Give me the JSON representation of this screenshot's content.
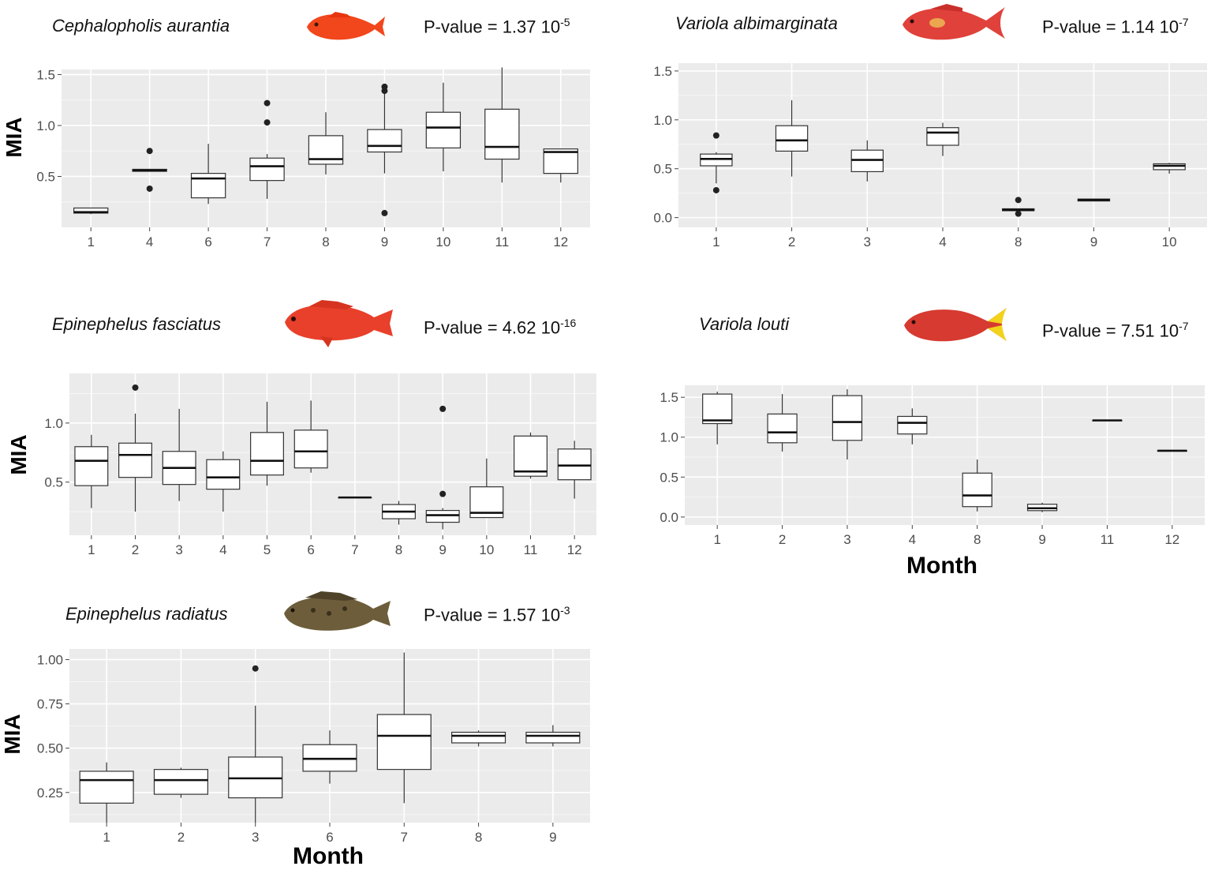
{
  "chart_data": [
    {
      "type": "boxplot",
      "species": "Cephalopholis aurantia",
      "p_value": {
        "mantissa": "1.37",
        "exponent": "-5"
      },
      "pvalue_label": "P-value =",
      "fish_icon": "orange-fish-icon",
      "fish_color": "#f2461c",
      "ylabel": "MIA",
      "xlabel": "",
      "ylim": [
        0.0,
        1.55
      ],
      "yticks": [
        0.5,
        1.0,
        1.5
      ],
      "ytick_labels": [
        "0.5",
        "1.0",
        "1.5"
      ],
      "categories": [
        "1",
        "4",
        "6",
        "7",
        "8",
        "9",
        "10",
        "11",
        "12"
      ],
      "boxes": [
        {
          "min": 0.13,
          "q1": 0.14,
          "median": 0.15,
          "q3": 0.19,
          "max": 0.19,
          "outliers": []
        },
        {
          "min": 0.55,
          "q1": 0.55,
          "median": 0.56,
          "q3": 0.57,
          "max": 0.57,
          "outliers": [
            0.38,
            0.75
          ]
        },
        {
          "min": 0.23,
          "q1": 0.29,
          "median": 0.48,
          "q3": 0.53,
          "max": 0.82,
          "outliers": []
        },
        {
          "min": 0.28,
          "q1": 0.46,
          "median": 0.6,
          "q3": 0.68,
          "max": 0.72,
          "outliers": [
            1.03,
            1.22
          ]
        },
        {
          "min": 0.52,
          "q1": 0.62,
          "median": 0.67,
          "q3": 0.9,
          "max": 1.13,
          "outliers": []
        },
        {
          "min": 0.53,
          "q1": 0.74,
          "median": 0.8,
          "q3": 0.96,
          "max": 1.31,
          "outliers": [
            0.14,
            1.34,
            1.38
          ]
        },
        {
          "min": 0.55,
          "q1": 0.78,
          "median": 0.98,
          "q3": 1.13,
          "max": 1.42,
          "outliers": []
        },
        {
          "min": 0.44,
          "q1": 0.67,
          "median": 0.79,
          "q3": 1.16,
          "max": 1.57,
          "outliers": []
        },
        {
          "min": 0.44,
          "q1": 0.53,
          "median": 0.74,
          "q3": 0.77,
          "max": 0.77,
          "outliers": []
        }
      ]
    },
    {
      "type": "boxplot",
      "species": "Variola albimarginata",
      "p_value": {
        "mantissa": "1.14",
        "exponent": "-7"
      },
      "pvalue_label": "P-value =",
      "fish_icon": "red-fish-icon",
      "fish_color": "#e0413a",
      "ylabel": "",
      "xlabel": "",
      "ylim": [
        -0.1,
        1.58
      ],
      "yticks": [
        0.0,
        0.5,
        1.0,
        1.5
      ],
      "ytick_labels": [
        "0.0",
        "0.5",
        "1.0",
        "1.5"
      ],
      "categories": [
        "1",
        "2",
        "3",
        "4",
        "8",
        "9",
        "10"
      ],
      "boxes": [
        {
          "min": 0.35,
          "q1": 0.53,
          "median": 0.6,
          "q3": 0.65,
          "max": 0.67,
          "outliers": [
            0.28,
            0.84
          ]
        },
        {
          "min": 0.42,
          "q1": 0.68,
          "median": 0.79,
          "q3": 0.94,
          "max": 1.2,
          "outliers": []
        },
        {
          "min": 0.37,
          "q1": 0.47,
          "median": 0.59,
          "q3": 0.69,
          "max": 0.79,
          "outliers": []
        },
        {
          "min": 0.63,
          "q1": 0.74,
          "median": 0.87,
          "q3": 0.92,
          "max": 0.97,
          "outliers": []
        },
        {
          "min": 0.07,
          "q1": 0.07,
          "median": 0.08,
          "q3": 0.09,
          "max": 0.09,
          "outliers": [
            0.04,
            0.18
          ]
        },
        {
          "min": 0.17,
          "q1": 0.17,
          "median": 0.18,
          "q3": 0.19,
          "max": 0.19,
          "outliers": []
        },
        {
          "min": 0.45,
          "q1": 0.49,
          "median": 0.53,
          "q3": 0.55,
          "max": 0.56,
          "outliers": []
        }
      ]
    },
    {
      "type": "boxplot",
      "species": "Epinephelus  fasciatus",
      "p_value": {
        "mantissa": "4.62",
        "exponent": "-16"
      },
      "pvalue_label": "P-value =",
      "fish_icon": "red-fish-icon",
      "fish_color": "#e8402b",
      "ylabel": "MIA",
      "xlabel": "",
      "ylim": [
        0.05,
        1.42
      ],
      "yticks": [
        0.5,
        1.0
      ],
      "ytick_labels": [
        "0.5",
        "1.0"
      ],
      "categories": [
        "1",
        "2",
        "3",
        "4",
        "5",
        "6",
        "7",
        "8",
        "9",
        "10",
        "11",
        "12"
      ],
      "boxes": [
        {
          "min": 0.28,
          "q1": 0.47,
          "median": 0.68,
          "q3": 0.8,
          "max": 0.9,
          "outliers": []
        },
        {
          "min": 0.25,
          "q1": 0.54,
          "median": 0.73,
          "q3": 0.83,
          "max": 1.08,
          "outliers": [
            1.3
          ]
        },
        {
          "min": 0.34,
          "q1": 0.48,
          "median": 0.62,
          "q3": 0.76,
          "max": 1.12,
          "outliers": []
        },
        {
          "min": 0.25,
          "q1": 0.44,
          "median": 0.54,
          "q3": 0.69,
          "max": 0.76,
          "outliers": []
        },
        {
          "min": 0.47,
          "q1": 0.56,
          "median": 0.68,
          "q3": 0.92,
          "max": 1.18,
          "outliers": []
        },
        {
          "min": 0.58,
          "q1": 0.62,
          "median": 0.76,
          "q3": 0.94,
          "max": 1.19,
          "outliers": []
        },
        {
          "min": 0.37,
          "q1": 0.37,
          "median": 0.37,
          "q3": 0.37,
          "max": 0.37,
          "outliers": []
        },
        {
          "min": 0.14,
          "q1": 0.19,
          "median": 0.25,
          "q3": 0.31,
          "max": 0.34,
          "outliers": []
        },
        {
          "min": 0.1,
          "q1": 0.16,
          "median": 0.22,
          "q3": 0.26,
          "max": 0.28,
          "outliers": [
            0.4,
            1.12
          ]
        },
        {
          "min": 0.2,
          "q1": 0.2,
          "median": 0.24,
          "q3": 0.46,
          "max": 0.7,
          "outliers": []
        },
        {
          "min": 0.53,
          "q1": 0.55,
          "median": 0.59,
          "q3": 0.89,
          "max": 0.92,
          "outliers": []
        },
        {
          "min": 0.36,
          "q1": 0.52,
          "median": 0.64,
          "q3": 0.78,
          "max": 0.85,
          "outliers": []
        }
      ]
    },
    {
      "type": "boxplot",
      "species": "Variola louti",
      "p_value": {
        "mantissa": "7.51",
        "exponent": "-7"
      },
      "pvalue_label": "P-value =",
      "fish_icon": "red-fish-icon",
      "fish_color": "#d63a30",
      "ylabel": "",
      "xlabel": "Month",
      "ylim": [
        -0.1,
        1.65
      ],
      "yticks": [
        0.0,
        0.5,
        1.0,
        1.5
      ],
      "ytick_labels": [
        "0.0",
        "0.5",
        "1.0",
        "1.5"
      ],
      "categories": [
        "1",
        "2",
        "3",
        "4",
        "8",
        "9",
        "11",
        "12"
      ],
      "boxes": [
        {
          "min": 0.91,
          "q1": 1.17,
          "median": 1.21,
          "q3": 1.54,
          "max": 1.57,
          "outliers": []
        },
        {
          "min": 0.82,
          "q1": 0.93,
          "median": 1.06,
          "q3": 1.29,
          "max": 1.54,
          "outliers": []
        },
        {
          "min": 0.72,
          "q1": 0.96,
          "median": 1.19,
          "q3": 1.52,
          "max": 1.6,
          "outliers": []
        },
        {
          "min": 0.91,
          "q1": 1.04,
          "median": 1.18,
          "q3": 1.26,
          "max": 1.36,
          "outliers": []
        },
        {
          "min": 0.07,
          "q1": 0.13,
          "median": 0.27,
          "q3": 0.55,
          "max": 0.72,
          "outliers": []
        },
        {
          "min": 0.06,
          "q1": 0.08,
          "median": 0.11,
          "q3": 0.16,
          "max": 0.18,
          "outliers": []
        },
        {
          "min": 1.21,
          "q1": 1.21,
          "median": 1.21,
          "q3": 1.21,
          "max": 1.21,
          "outliers": []
        },
        {
          "min": 0.83,
          "q1": 0.83,
          "median": 0.83,
          "q3": 0.83,
          "max": 0.83,
          "outliers": []
        }
      ]
    },
    {
      "type": "boxplot",
      "species": "Epinephelus  radiatus",
      "p_value": {
        "mantissa": "1.57",
        "exponent": "-3"
      },
      "pvalue_label": "P-value =",
      "fish_icon": "brown-fish-icon",
      "fish_color": "#6d5d3b",
      "ylabel": "MIA",
      "xlabel": "Month",
      "ylim": [
        0.08,
        1.06
      ],
      "yticks": [
        0.25,
        0.5,
        0.75,
        1.0
      ],
      "ytick_labels": [
        "0.25",
        "0.50",
        "0.75",
        "1.00"
      ],
      "categories": [
        "1",
        "2",
        "3",
        "6",
        "7",
        "8",
        "9"
      ],
      "boxes": [
        {
          "min": 0.08,
          "q1": 0.19,
          "median": 0.32,
          "q3": 0.37,
          "max": 0.42,
          "outliers": []
        },
        {
          "min": 0.22,
          "q1": 0.24,
          "median": 0.32,
          "q3": 0.38,
          "max": 0.39,
          "outliers": []
        },
        {
          "min": 0.08,
          "q1": 0.22,
          "median": 0.33,
          "q3": 0.45,
          "max": 0.74,
          "outliers": [
            0.95
          ]
        },
        {
          "min": 0.3,
          "q1": 0.37,
          "median": 0.44,
          "q3": 0.52,
          "max": 0.6,
          "outliers": []
        },
        {
          "min": 0.19,
          "q1": 0.38,
          "median": 0.57,
          "q3": 0.69,
          "max": 1.04,
          "outliers": []
        },
        {
          "min": 0.51,
          "q1": 0.53,
          "median": 0.57,
          "q3": 0.59,
          "max": 0.6,
          "outliers": []
        },
        {
          "min": 0.51,
          "q1": 0.53,
          "median": 0.57,
          "q3": 0.59,
          "max": 0.63,
          "outliers": []
        }
      ]
    }
  ]
}
